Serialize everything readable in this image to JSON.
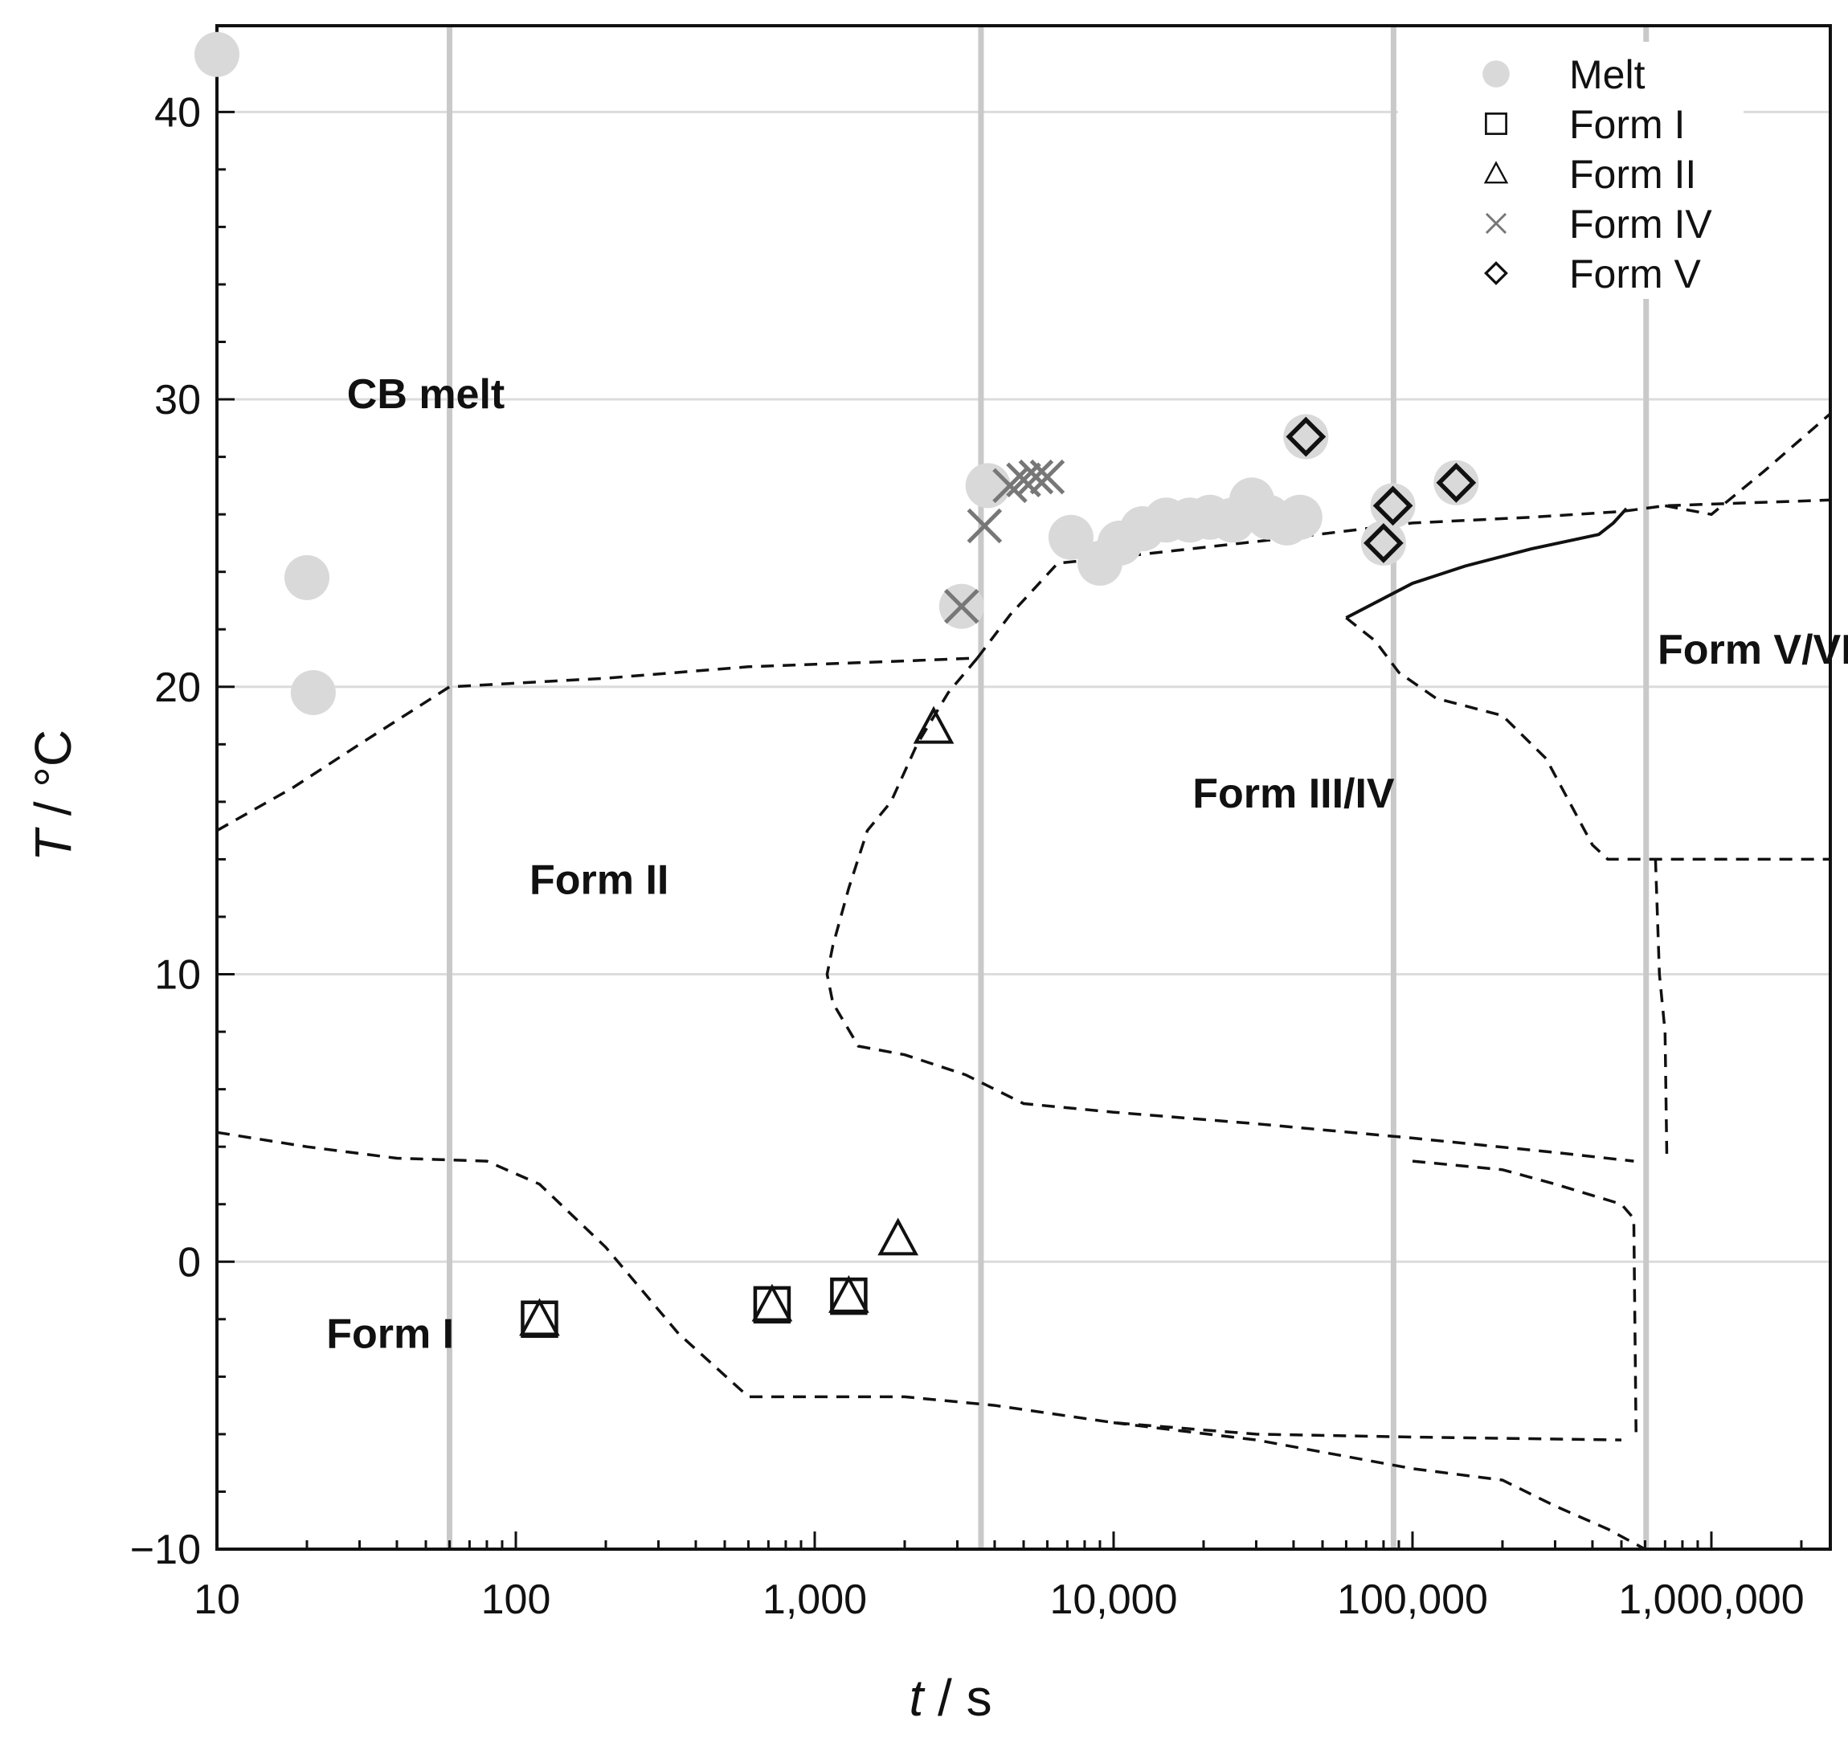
{
  "chart_data": {
    "type": "scatter",
    "title": "",
    "xlabel_var": "t",
    "xlabel_unit": " / s",
    "ylabel_var": "T",
    "ylabel_unit": " / °C",
    "xscale": "log",
    "xlim": [
      10,
      2500000
    ],
    "ylim": [
      -10,
      43
    ],
    "x_ticks": [
      10,
      100,
      1000,
      10000,
      100000,
      1000000
    ],
    "x_tick_labels": [
      "10",
      "100",
      "1,000",
      "10,000",
      "100,000",
      "1,000,000"
    ],
    "y_ticks": [
      -10,
      0,
      10,
      20,
      30,
      40
    ],
    "y_tick_labels": [
      "−10",
      "0",
      "10",
      "20",
      "30",
      "40"
    ],
    "grid": true,
    "legend_position": "top-right",
    "vertical_reference_lines_x": [
      60,
      3600,
      86400,
      604800
    ],
    "series": [
      {
        "name": "Melt",
        "marker": "filled-circle",
        "color": "#d9d9d9",
        "points": [
          [
            10,
            42
          ],
          [
            20,
            23.8
          ],
          [
            21,
            19.8
          ],
          [
            3100,
            22.8
          ],
          [
            3800,
            27
          ],
          [
            7200,
            25.2
          ],
          [
            9000,
            24.3
          ],
          [
            10500,
            25
          ],
          [
            12500,
            25.5
          ],
          [
            15000,
            25.8
          ],
          [
            18000,
            25.8
          ],
          [
            21000,
            25.9
          ],
          [
            25000,
            25.8
          ],
          [
            29000,
            26.5
          ],
          [
            33000,
            25.9
          ],
          [
            38000,
            25.7
          ],
          [
            42000,
            25.9
          ],
          [
            44000,
            28.7
          ],
          [
            86000,
            26.3
          ],
          [
            80000,
            25
          ],
          [
            140000,
            27.1
          ]
        ]
      },
      {
        "name": "Form I",
        "marker": "open-square",
        "color": "#111111",
        "points": [
          [
            120,
            -2
          ],
          [
            720,
            -1.5
          ],
          [
            1300,
            -1.2
          ]
        ]
      },
      {
        "name": "Form II",
        "marker": "open-triangle",
        "color": "#111111",
        "points": [
          [
            120,
            -2
          ],
          [
            720,
            -1.5
          ],
          [
            1300,
            -1.2
          ],
          [
            1900,
            0.8
          ],
          [
            2500,
            18.6
          ]
        ]
      },
      {
        "name": "Form IV",
        "marker": "x",
        "color": "#777777",
        "points": [
          [
            3100,
            22.8
          ],
          [
            3700,
            25.6
          ],
          [
            4500,
            27
          ],
          [
            5000,
            27.2
          ],
          [
            5500,
            27.3
          ],
          [
            6000,
            27.3
          ]
        ]
      },
      {
        "name": "Form V",
        "marker": "open-diamond",
        "color": "#111111",
        "points": [
          [
            44000,
            28.7
          ],
          [
            86000,
            26.3
          ],
          [
            80000,
            25
          ],
          [
            140000,
            27.1
          ]
        ]
      }
    ],
    "boundaries": [
      {
        "style": "dashed",
        "points": [
          [
            10,
            15
          ],
          [
            18,
            16.5
          ],
          [
            30,
            18
          ],
          [
            60,
            20
          ],
          [
            200,
            20.3
          ],
          [
            600,
            20.7
          ],
          [
            2000,
            20.9
          ],
          [
            3500,
            21
          ]
        ]
      },
      {
        "style": "dashed",
        "points": [
          [
            3500,
            21
          ],
          [
            2800,
            19.8
          ],
          [
            2200,
            18
          ],
          [
            1800,
            16
          ],
          [
            1500,
            15
          ],
          [
            1300,
            13
          ],
          [
            1150,
            11
          ],
          [
            1100,
            10
          ],
          [
            1150,
            9
          ],
          [
            1400,
            7.5
          ],
          [
            2000,
            7.2
          ],
          [
            3200,
            6.5
          ],
          [
            5000,
            5.5
          ],
          [
            10000,
            5.2
          ],
          [
            30000,
            4.8
          ],
          [
            100000,
            4.3
          ],
          [
            300000,
            3.8
          ],
          [
            550000,
            3.5
          ]
        ]
      },
      {
        "style": "dashed",
        "points": [
          [
            3500,
            21
          ],
          [
            4500,
            22.5
          ],
          [
            6500,
            24.3
          ],
          [
            10000,
            24.5
          ],
          [
            40000,
            25.2
          ],
          [
            100000,
            25.7
          ],
          [
            250000,
            25.9
          ],
          [
            500000,
            26.1
          ],
          [
            700000,
            26.3
          ],
          [
            2500000,
            26.5
          ]
        ]
      },
      {
        "style": "dashed",
        "points": [
          [
            60000,
            22.4
          ],
          [
            75000,
            21.6
          ],
          [
            90000,
            20.5
          ],
          [
            120000,
            19.6
          ],
          [
            200000,
            19
          ],
          [
            280000,
            17.5
          ],
          [
            400000,
            14.5
          ],
          [
            450000,
            14
          ],
          [
            2500000,
            14
          ]
        ]
      },
      {
        "style": "dashed",
        "points": [
          [
            650000,
            14
          ],
          [
            670000,
            10
          ],
          [
            700000,
            8
          ],
          [
            710000,
            3.5
          ]
        ]
      },
      {
        "style": "dashed",
        "points": [
          [
            700000,
            26.3
          ],
          [
            1000000,
            26
          ],
          [
            1500000,
            27.5
          ],
          [
            2500000,
            29.5
          ]
        ]
      },
      {
        "style": "dashed",
        "points": [
          [
            10,
            4.5
          ],
          [
            20,
            4
          ],
          [
            40,
            3.6
          ],
          [
            80,
            3.5
          ],
          [
            120,
            2.7
          ],
          [
            200,
            0.5
          ],
          [
            350,
            -2.5
          ],
          [
            600,
            -4.7
          ],
          [
            2000,
            -4.7
          ],
          [
            4000,
            -5
          ],
          [
            10000,
            -5.6
          ],
          [
            30000,
            -6
          ],
          [
            100000,
            -6.1
          ],
          [
            500000,
            -6.2
          ]
        ]
      },
      {
        "style": "dashed",
        "points": [
          [
            100000,
            3.5
          ],
          [
            200000,
            3.2
          ],
          [
            300000,
            2.7
          ],
          [
            500000,
            2
          ],
          [
            550000,
            1.5
          ],
          [
            560000,
            -6.2
          ]
        ]
      },
      {
        "style": "dashed",
        "points": [
          [
            10000,
            -5.6
          ],
          [
            30000,
            -6.2
          ],
          [
            100000,
            -7.2
          ],
          [
            200000,
            -7.6
          ],
          [
            300000,
            -8.5
          ],
          [
            450000,
            -9.3
          ],
          [
            600000,
            -10
          ]
        ]
      },
      {
        "style": "solid",
        "points": [
          [
            60000,
            22.4
          ],
          [
            100000,
            23.6
          ],
          [
            150000,
            24.2
          ],
          [
            250000,
            24.8
          ],
          [
            420000,
            25.3
          ],
          [
            470000,
            25.7
          ],
          [
            520000,
            26.2
          ]
        ]
      }
    ],
    "region_labels": [
      {
        "text": "CB melt",
        "x": 50,
        "y": 29.7
      },
      {
        "text": "Form II",
        "x": 190,
        "y": 12.8
      },
      {
        "text": "Form III/IV",
        "x": 40000,
        "y": 15.8
      },
      {
        "text": "Form V/VI",
        "x": 1400000,
        "y": 20.8
      },
      {
        "text": "Form I",
        "x": 38,
        "y": -3
      }
    ]
  }
}
